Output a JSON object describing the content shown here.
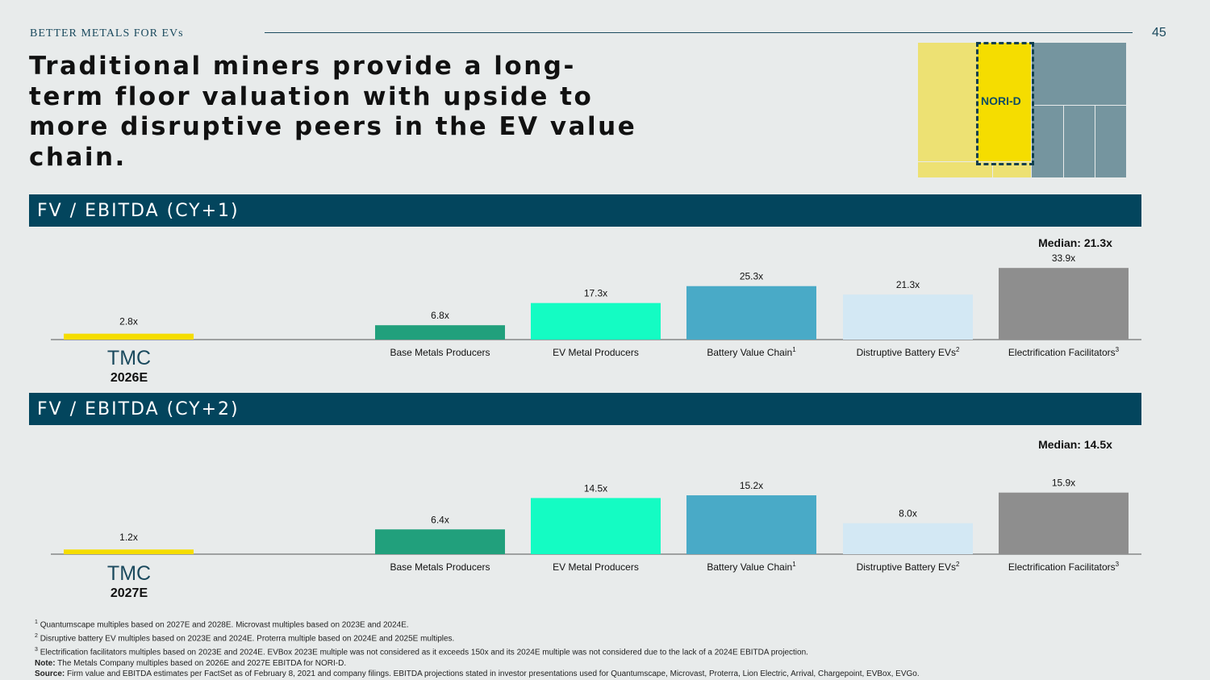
{
  "header": {
    "kicker": "BETTER METALS FOR EVs",
    "page_number": "45",
    "title": "Traditional miners provide a long-term floor valuation with upside to more disruptive peers in the EV value chain."
  },
  "thumbnail": {
    "label": "NORI-D"
  },
  "colors": {
    "band": "#03455d",
    "tmc": "#f5dd00",
    "base_metals": "#21a07c",
    "ev_metal": "#14fcc3",
    "battery_value_chain": "#49aac7",
    "disruptive_battery": "#d3e8f4",
    "electrification": "#8e8e8e"
  },
  "chart_data": [
    {
      "type": "bar",
      "title": "FV / EBITDA (CY+1)",
      "median_label": "Median: 21.3x",
      "tmc": {
        "name": "TMC",
        "year": "2026E",
        "value": 2.8,
        "label": "2.8x"
      },
      "categories": [
        {
          "name": "Base Metals Producers",
          "sup": ""
        },
        {
          "name": "EV Metal Producers",
          "sup": ""
        },
        {
          "name": "Battery Value Chain",
          "sup": "1"
        },
        {
          "name": "Distruptive Battery EVs",
          "sup": "2"
        },
        {
          "name": "Electrification Facilitators",
          "sup": "3"
        }
      ],
      "values": [
        6.8,
        17.3,
        25.3,
        21.3,
        33.9
      ],
      "value_labels": [
        "6.8x",
        "17.3x",
        "25.3x",
        "21.3x",
        "33.9x"
      ]
    },
    {
      "type": "bar",
      "title": "FV / EBITDA (CY+2)",
      "median_label": "Median: 14.5x",
      "tmc": {
        "name": "TMC",
        "year": "2027E",
        "value": 1.2,
        "label": "1.2x"
      },
      "categories": [
        {
          "name": "Base Metals Producers",
          "sup": ""
        },
        {
          "name": "EV Metal Producers",
          "sup": ""
        },
        {
          "name": "Battery Value Chain",
          "sup": "1"
        },
        {
          "name": "Distruptive Battery EVs",
          "sup": "2"
        },
        {
          "name": "Electrification Facilitators",
          "sup": "3"
        }
      ],
      "values": [
        6.4,
        14.5,
        15.2,
        8.0,
        15.9
      ],
      "value_labels": [
        "6.4x",
        "14.5x",
        "15.2x",
        "8.0x",
        "15.9x"
      ]
    }
  ],
  "footnotes": {
    "f1": {
      "num": "1",
      "text": "Quantumscape multiples based on 2027E and 2028E. Microvast multiples based on 2023E and 2024E."
    },
    "f2": {
      "num": "2",
      "text": "Disruptive battery EV multiples based on 2023E and 2024E. Proterra multiple based on 2024E and 2025E multiples."
    },
    "f3": {
      "num": "3",
      "text": "Electrification facilitators multiples based on 2023E and 2024E. EVBox 2023E multiple was not considered as it exceeds 150x and its 2024E multiple was not considered due to the lack of a 2024E EBITDA projection."
    },
    "note": {
      "label": "Note:",
      "text": "The Metals Company multiples based on 2026E and 2027E EBITDA for NORI-D."
    },
    "source": {
      "label": "Source:",
      "text": "Firm value and EBITDA estimates per FactSet as of February 8, 2021 and company filings. EBITDA projections stated in investor presentations used for Quantumscape, Microvast, Proterra, Lion Electric, Arrival, Chargepoint, EVBox, EVGo."
    }
  }
}
